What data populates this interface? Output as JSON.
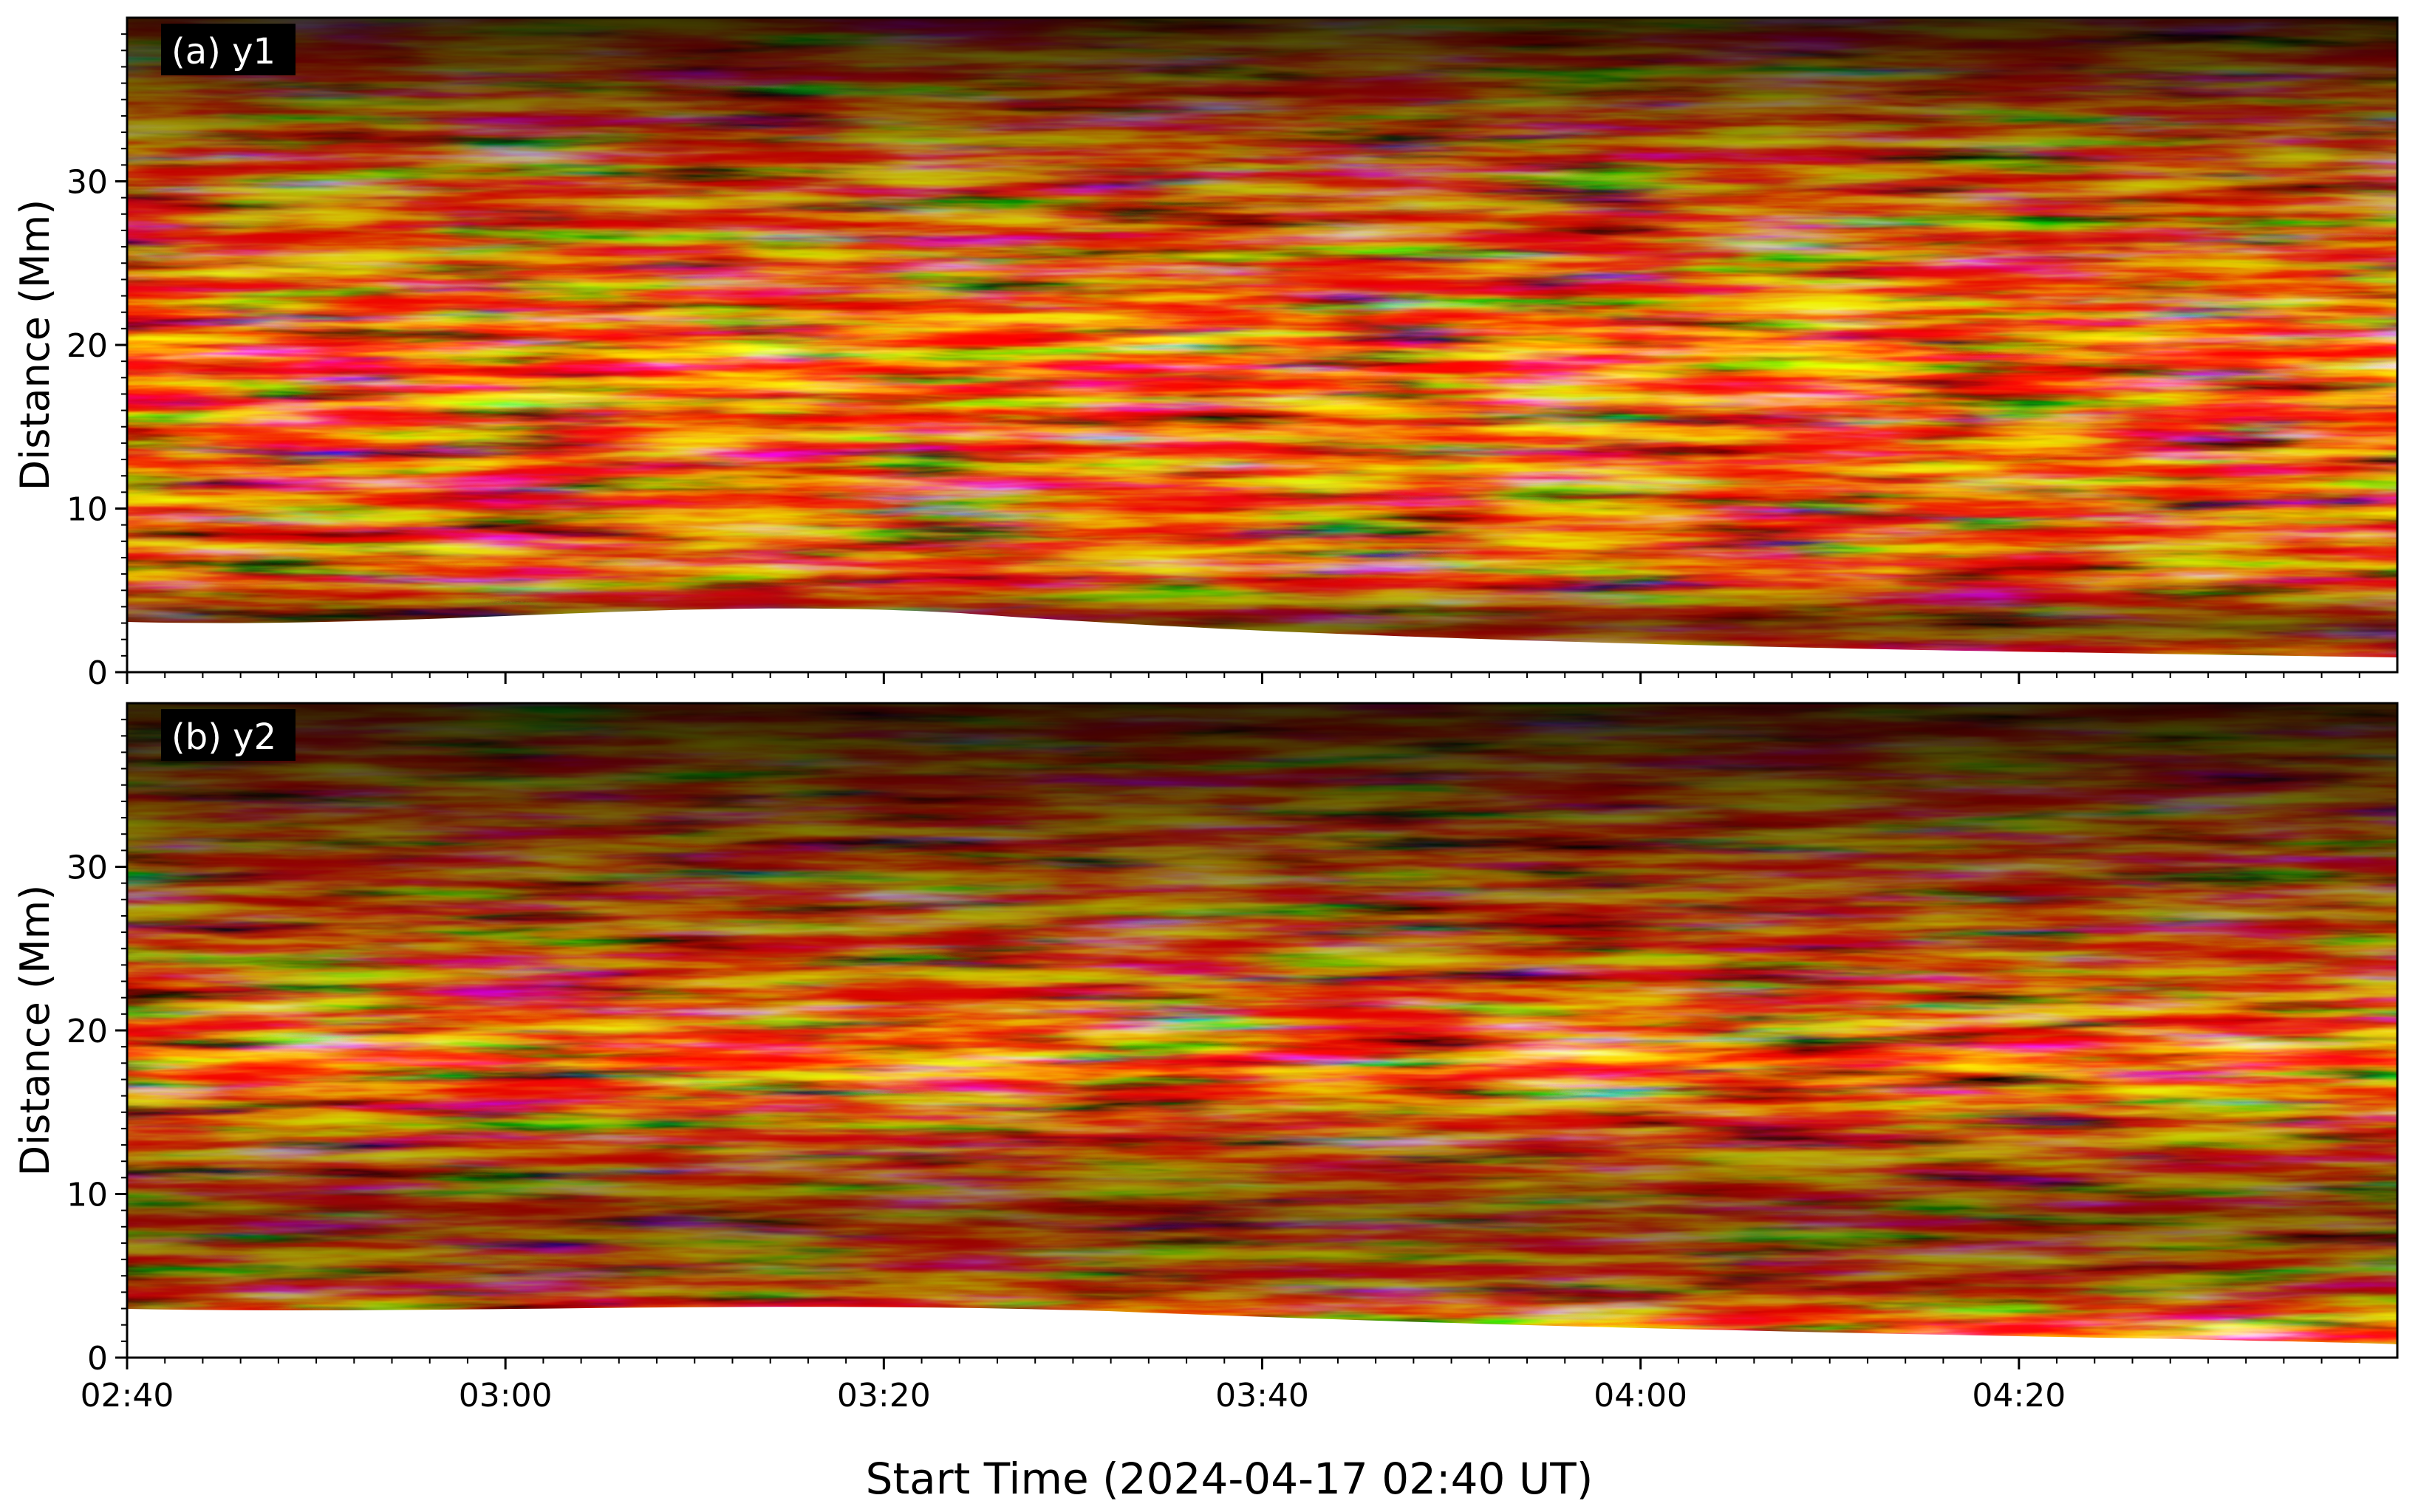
{
  "figure": {
    "xlabel": "Start Time (2024-04-17 02:40 UT)",
    "colormap": [
      "#000000",
      "#8b0000",
      "#e03a10",
      "#ff9a00",
      "#ffe070",
      "#ffffff"
    ]
  },
  "chart_data": [
    {
      "type": "heatmap",
      "panel_label": "(a) y1",
      "ylabel": "Distance (Mm)",
      "xlim_minutes_from_start": [
        0,
        120
      ],
      "ylim": [
        0,
        40
      ],
      "xticks": [
        "02:40",
        "03:00",
        "03:20",
        "03:40",
        "04:00",
        "04:20"
      ],
      "yticks": [
        0,
        10,
        20,
        30
      ],
      "grid": false
    },
    {
      "type": "heatmap",
      "panel_label": "(b) y2",
      "ylabel": "Distance (Mm)",
      "xlim_minutes_from_start": [
        0,
        120
      ],
      "ylim": [
        0,
        40
      ],
      "xticks": [
        "02:40",
        "03:00",
        "03:20",
        "03:40",
        "04:00",
        "04:20"
      ],
      "yticks": [
        0,
        10,
        20,
        30
      ],
      "grid": false
    }
  ]
}
